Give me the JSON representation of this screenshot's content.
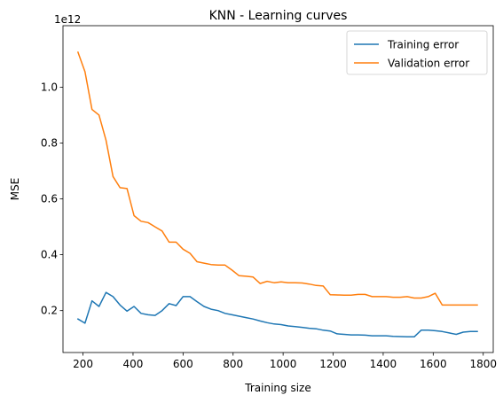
{
  "chart_data": {
    "type": "line",
    "title": "KNN - Learning curves",
    "xlabel": "Training size",
    "ylabel": "MSE",
    "y_offset_label": "1e12",
    "xlim": [
      120,
      1840
    ],
    "ylim": [
      0.05,
      1.22
    ],
    "x_ticks": [
      200,
      400,
      600,
      800,
      1000,
      1200,
      1400,
      1600,
      1800
    ],
    "x_tick_labels": [
      "200",
      "400",
      "600",
      "800",
      "1000",
      "1200",
      "1400",
      "1600",
      "1800"
    ],
    "y_ticks": [
      0.2,
      0.4,
      0.6,
      0.8,
      1.0
    ],
    "y_tick_labels": [
      "0.2",
      "0.4",
      "0.6",
      "0.8",
      "1.0"
    ],
    "grid": false,
    "legend_position": "top-right",
    "x": [
      180,
      208,
      236,
      264,
      292,
      320,
      348,
      376,
      404,
      432,
      460,
      488,
      516,
      544,
      572,
      600,
      628,
      656,
      684,
      712,
      740,
      768,
      796,
      824,
      852,
      880,
      908,
      936,
      964,
      992,
      1020,
      1048,
      1076,
      1104,
      1132,
      1160,
      1188,
      1216,
      1244,
      1272,
      1300,
      1328,
      1356,
      1384,
      1412,
      1440,
      1468,
      1496,
      1524,
      1552,
      1580,
      1608,
      1636,
      1664,
      1692,
      1720,
      1748,
      1776
    ],
    "series": [
      {
        "name": "Training error",
        "color": "#1f77b4",
        "values": [
          0.17,
          0.155,
          0.235,
          0.215,
          0.265,
          0.25,
          0.22,
          0.198,
          0.215,
          0.19,
          0.185,
          0.183,
          0.2,
          0.225,
          0.218,
          0.25,
          0.25,
          0.232,
          0.215,
          0.205,
          0.2,
          0.19,
          0.185,
          0.18,
          0.175,
          0.17,
          0.163,
          0.157,
          0.152,
          0.15,
          0.145,
          0.143,
          0.14,
          0.137,
          0.135,
          0.13,
          0.127,
          0.117,
          0.115,
          0.113,
          0.113,
          0.112,
          0.11,
          0.11,
          0.11,
          0.108,
          0.107,
          0.106,
          0.106,
          0.13,
          0.13,
          0.128,
          0.125,
          0.12,
          0.115,
          0.123,
          0.125,
          0.125
        ]
      },
      {
        "name": "Validation error",
        "color": "#ff7f0e",
        "values": [
          1.125,
          1.055,
          0.92,
          0.9,
          0.81,
          0.68,
          0.64,
          0.637,
          0.54,
          0.52,
          0.515,
          0.5,
          0.485,
          0.445,
          0.445,
          0.42,
          0.405,
          0.375,
          0.37,
          0.365,
          0.363,
          0.363,
          0.345,
          0.325,
          0.323,
          0.32,
          0.297,
          0.305,
          0.3,
          0.303,
          0.3,
          0.3,
          0.299,
          0.295,
          0.29,
          0.288,
          0.257,
          0.256,
          0.255,
          0.255,
          0.258,
          0.258,
          0.25,
          0.25,
          0.25,
          0.248,
          0.248,
          0.25,
          0.245,
          0.245,
          0.25,
          0.262,
          0.22,
          0.22,
          0.22,
          0.22,
          0.22,
          0.22
        ]
      }
    ]
  }
}
